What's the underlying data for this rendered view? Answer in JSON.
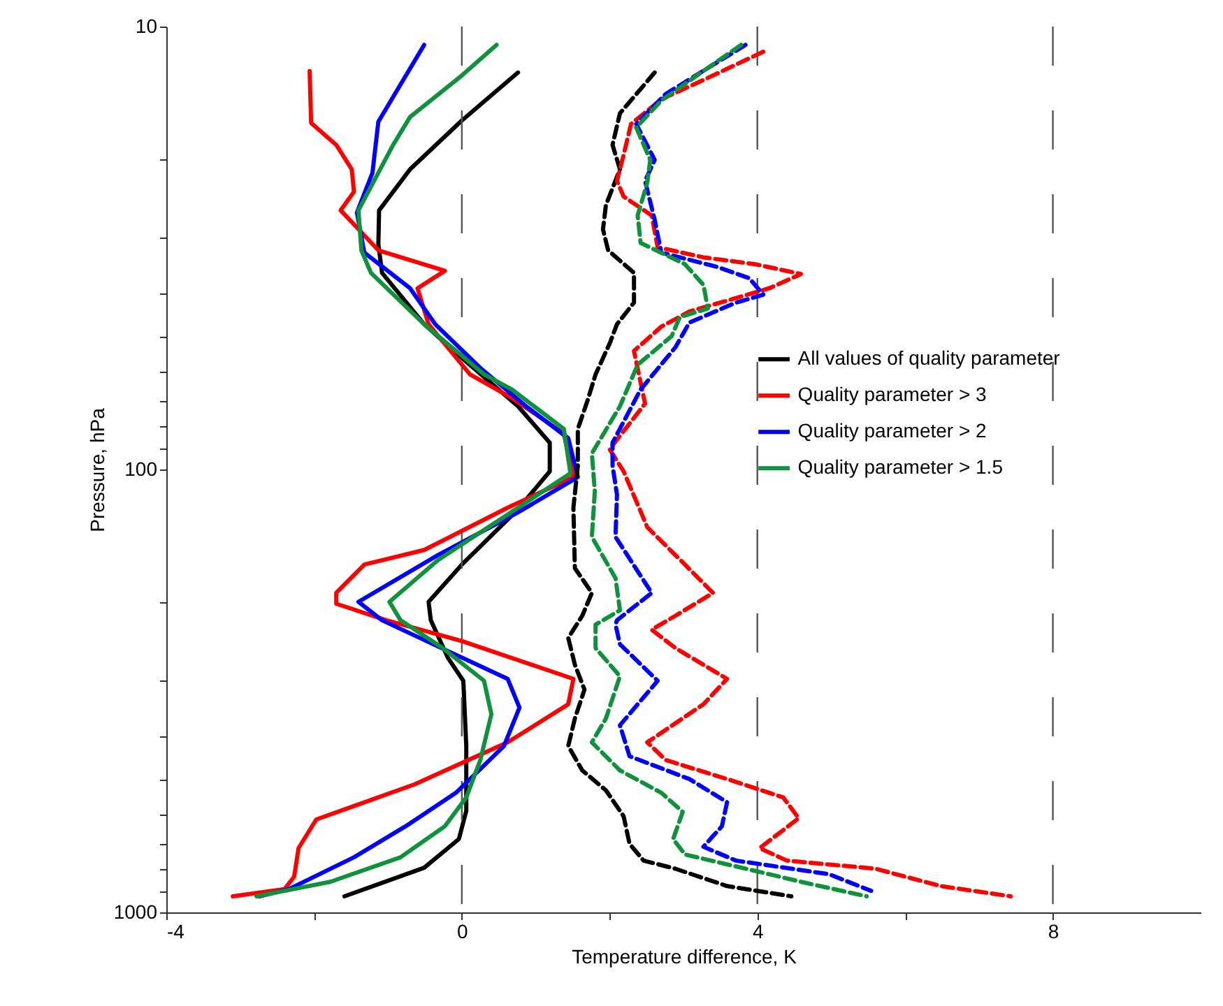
{
  "chart_data": {
    "type": "line",
    "xlabel": "Temperature difference, K",
    "ylabel": "Pressure, hPa",
    "xlim": [
      -4,
      10
    ],
    "xticks": [
      -4,
      {
        "value": -2,
        "label": null
      },
      0,
      {
        "value": 2,
        "label": null
      },
      4,
      {
        "value": 6,
        "label": null
      },
      8
    ],
    "ylim": [
      1000,
      10
    ],
    "log": "y",
    "yticks": [
      10,
      {
        "value": 20,
        "label": null
      },
      {
        "value": 30,
        "label": null
      },
      {
        "value": 40,
        "label": null
      },
      {
        "value": 50,
        "label": null
      },
      {
        "value": 60,
        "label": null
      },
      {
        "value": 70,
        "label": null
      },
      {
        "value": 80,
        "label": null
      },
      {
        "value": 90,
        "label": null
      },
      100,
      {
        "value": 200,
        "label": null
      },
      {
        "value": 300,
        "label": null
      },
      {
        "value": 400,
        "label": null
      },
      {
        "value": 500,
        "label": null
      },
      {
        "value": 600,
        "label": null
      },
      {
        "value": 700,
        "label": null
      },
      {
        "value": 800,
        "label": null
      },
      {
        "value": 900,
        "label": null
      },
      1000
    ],
    "ref_lines": [
      {
        "axis": "x",
        "value": 0,
        "color": "#555555",
        "line_style": "dashed"
      },
      {
        "axis": "x",
        "value": 4,
        "color": "#555555",
        "line_style": "dashed"
      },
      {
        "axis": "x",
        "value": 8,
        "color": "#555555",
        "line_style": "dashed"
      }
    ],
    "legend": "right",
    "grid": false,
    "marker": "none",
    "series": [
      {
        "name": "All values of quality parameter",
        "color": "#000000",
        "line_style": "solid",
        "x": [
          0.76,
          0,
          -0.7,
          -1.12,
          -1.13,
          -1.08,
          -0.51,
          0,
          0.76,
          1.19,
          1.19,
          0.76,
          0,
          -0.45,
          -0.42,
          -0.19,
          0.02,
          0.06,
          0.06,
          -0.04,
          -0.51,
          -1.59
        ],
        "values": [
          12.7,
          16.3,
          21,
          26,
          31,
          36,
          47,
          56,
          72,
          87,
          101,
          123,
          164,
          199,
          219,
          266,
          300,
          421,
          590,
          683,
          793,
          920
        ]
      },
      {
        "name": "Quality parameter > 3",
        "color": "#ff0000",
        "line_style": "solid",
        "x": [
          -2.06,
          -2.04,
          -1.7,
          -1.49,
          -1.46,
          -1.64,
          -1.13,
          -0.23,
          -0.6,
          -0.45,
          0.11,
          0.68,
          1.38,
          1.51,
          0.62,
          -0.51,
          -1.32,
          -1.7,
          -1.7,
          -1.02,
          0,
          1.51,
          1.44,
          0.62,
          -0.64,
          -1.97,
          -2.21,
          -2.27,
          -2.4,
          -3.1
        ],
        "values": [
          12.6,
          16.5,
          18.5,
          21,
          23.6,
          26,
          32,
          35.6,
          39,
          47,
          61,
          69,
          83,
          104,
          122,
          152,
          164,
          190,
          201,
          219,
          244,
          297,
          339,
          413,
          514,
          617,
          716,
          831,
          886,
          920
        ]
      },
      {
        "name": "Quality parameter > 2",
        "color": "#0000ff",
        "line_style": "solid",
        "x": [
          -0.51,
          -1.13,
          -1.21,
          -1.42,
          -1.32,
          -0.7,
          -0.36,
          0.25,
          0.87,
          1.44,
          1.57,
          0.76,
          -0.32,
          -1.4,
          -1.08,
          -0.19,
          0.62,
          0.78,
          0.57,
          -0.08,
          -0.76,
          -1.46,
          -2.34,
          -2.74
        ],
        "values": [
          11,
          16.4,
          21.4,
          26.3,
          32.4,
          39,
          47,
          59,
          72,
          85,
          104,
          125,
          156,
          199,
          219,
          257,
          297,
          345,
          421,
          537,
          639,
          751,
          886,
          920
        ]
      },
      {
        "name": "Quality parameter > 1.5",
        "color": "#10913c",
        "line_style": "solid",
        "x": [
          0.47,
          0,
          -0.7,
          -0.93,
          -1.4,
          -1.36,
          -1.23,
          -0.51,
          0.3,
          0.68,
          1.38,
          1.47,
          0.57,
          -0.32,
          -0.98,
          -0.83,
          -0.26,
          0.3,
          0.4,
          0.25,
          0.06,
          -0.23,
          -0.83,
          -1.78,
          -2.78
        ],
        "values": [
          11,
          12.9,
          16,
          18.5,
          26,
          32,
          36,
          47,
          61,
          66,
          81,
          102,
          128,
          160,
          199,
          219,
          253,
          300,
          357,
          453,
          550,
          639,
          751,
          853,
          920
        ]
      },
      {
        "color": "#000000",
        "line_style": "dashed",
        "x": [
          2.61,
          2.14,
          2.04,
          2.14,
          1.95,
          1.91,
          1.98,
          2.33,
          2.33,
          2.1,
          2.0,
          1.81,
          1.7,
          1.57,
          1.57,
          1.51,
          1.53,
          1.76,
          1.63,
          1.44,
          1.53,
          1.66,
          1.53,
          1.44,
          1.63,
          1.95,
          2.19,
          2.27,
          2.46,
          2.89,
          3.59,
          4.46
        ],
        "values": [
          12.7,
          15.7,
          18.5,
          21,
          25.3,
          28.7,
          32,
          36,
          42,
          47,
          52,
          61,
          70,
          81,
          98,
          122,
          167,
          190,
          214,
          240,
          276,
          314,
          365,
          421,
          478,
          530,
          607,
          700,
          764,
          797,
          872,
          920
        ]
      },
      {
        "color": "#ff0000",
        "line_style": "dashed",
        "x": [
          4.08,
          3.27,
          2.7,
          2.29,
          2.19,
          2.1,
          2.19,
          2.57,
          2.65,
          3.27,
          3.97,
          4.59,
          4.16,
          3.08,
          2.7,
          2.33,
          2.48,
          2.0,
          2.19,
          2.51,
          3.02,
          3.4,
          2.89,
          2.57,
          2.89,
          3.59,
          3.27,
          2.51,
          2.76,
          3.59,
          4.35,
          4.56,
          4.03,
          4.4,
          5.6,
          6.48,
          7.43
        ],
        "values": [
          11.4,
          13.2,
          14.6,
          16.6,
          19.5,
          22.3,
          24.2,
          26.7,
          31.5,
          33.2,
          34.4,
          36.2,
          39,
          44,
          47.6,
          54,
          71,
          90,
          101,
          135,
          164,
          190,
          214,
          230,
          253,
          297,
          339,
          413,
          453,
          500,
          550,
          613,
          716,
          764,
          797,
          872,
          920
        ]
      },
      {
        "color": "#0000ff",
        "line_style": "dashed",
        "x": [
          3.84,
          2.76,
          2.36,
          2.61,
          2.48,
          2.61,
          2.7,
          3.46,
          3.89,
          4.08,
          3.71,
          3.08,
          2.89,
          2.42,
          2.04,
          2.04,
          2.1,
          2.08,
          2.57,
          2.1,
          2.08,
          2.14,
          2.65,
          2.14,
          2.27,
          3.08,
          3.59,
          3.52,
          3.27,
          3.71,
          4.97,
          5.54
        ],
        "values": [
          11,
          14.2,
          16.6,
          20,
          22.3,
          27.3,
          32.4,
          34.9,
          37,
          40.3,
          42,
          46.6,
          53,
          66,
          87,
          98,
          114,
          142,
          190,
          219,
          224,
          248,
          300,
          378,
          444,
          500,
          564,
          639,
          711,
          764,
          820,
          894
        ]
      },
      {
        "color": "#10913c",
        "line_style": "dashed",
        "x": [
          3.78,
          3.27,
          2.7,
          2.36,
          2.55,
          2.51,
          2.38,
          2.42,
          3.02,
          3.27,
          3.33,
          2.95,
          2.84,
          2.38,
          2.14,
          1.76,
          1.8,
          1.76,
          2.08,
          2.14,
          1.81,
          1.81,
          2.14,
          1.95,
          1.76,
          2.14,
          2.7,
          2.99,
          2.86,
          3.02,
          4.16,
          4.59,
          5.48
        ],
        "values": [
          11,
          12.6,
          14.7,
          16.9,
          20,
          22.5,
          26.7,
          30.8,
          34.4,
          38.3,
          43.3,
          45.3,
          50,
          58,
          72,
          92,
          112,
          142,
          176,
          208,
          224,
          253,
          293,
          365,
          413,
          478,
          537,
          593,
          683,
          740,
          820,
          853,
          920
        ]
      }
    ]
  }
}
